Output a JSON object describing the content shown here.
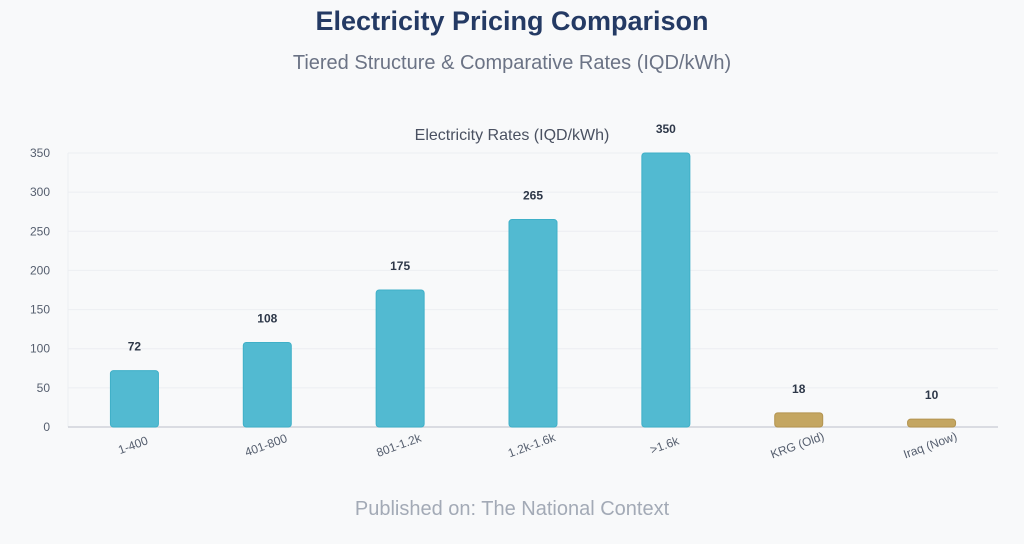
{
  "header": {
    "title": "Electricity Pricing Comparison",
    "subtitle": "Tiered Structure & Comparative Rates (IQD/kWh)"
  },
  "footer": {
    "text": "Published on: The National Context"
  },
  "colors": {
    "tier_bar": "#52bad1",
    "tier_bar_edge": "#3fb0c8",
    "comparison_bar": "#c4a661",
    "comparison_bar_edge": "#b39450",
    "grid": "#eceef2",
    "axis": "#c7ccd4",
    "tick_text": "#555e6e",
    "value_text": "#2d3748"
  },
  "chart_data": {
    "type": "bar",
    "title": "Electricity Rates (IQD/kWh)",
    "xlabel": "",
    "ylabel": "",
    "categories": [
      "1-400",
      "401-800",
      "801-1.2k",
      "1.2k-1.6k",
      ">1.6k",
      "KRG (Old)",
      "Iraq (Now)"
    ],
    "values": [
      72,
      108,
      175,
      265,
      350,
      18,
      10
    ],
    "bar_groups": [
      "tier",
      "tier",
      "tier",
      "tier",
      "tier",
      "comparison",
      "comparison"
    ],
    "ylim": [
      0,
      350
    ],
    "yticks": [
      0,
      50,
      100,
      150,
      200,
      250,
      300,
      350
    ],
    "grid": true,
    "data_labels": true,
    "x_tick_rotation": -20
  }
}
